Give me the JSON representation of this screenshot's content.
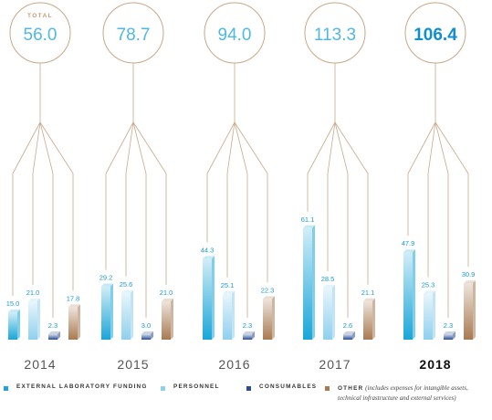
{
  "chart_data": {
    "type": "bar",
    "categories": [
      "2014",
      "2015",
      "2016",
      "2017",
      "2018"
    ],
    "totals": [
      "56.0",
      "78.7",
      "94.0",
      "113.3",
      "106.4"
    ],
    "total_label": "TOTAL",
    "highlighted_category": "2018",
    "series": [
      {
        "name": "EXTERNAL LABORATORY FUNDING",
        "values": [
          15.0,
          29.2,
          44.3,
          61.1,
          47.9
        ],
        "color": "#1aa6d8"
      },
      {
        "name": "PERSONNEL",
        "values": [
          21.0,
          25.6,
          25.1,
          28.5,
          25.3
        ],
        "color": "#8fd0ee"
      },
      {
        "name": "CONSUMABLES",
        "values": [
          2.3,
          3.0,
          2.3,
          2.6,
          2.3
        ],
        "color": "#2a4e94"
      },
      {
        "name": "OTHER",
        "values": [
          17.8,
          21.0,
          22.3,
          21.1,
          30.9
        ],
        "color": "#a87a52"
      }
    ],
    "value_labels": [
      [
        "15.0",
        "21.0",
        "2.3",
        "17.8"
      ],
      [
        "29.2",
        "25.6",
        "3.0",
        "21.0"
      ],
      [
        "44.3",
        "25.1",
        "2.3",
        "22.3"
      ],
      [
        "61.1",
        "28.5",
        "2.6",
        "21.1"
      ],
      [
        "47.9",
        "25.3",
        "2.3",
        "30.9"
      ]
    ],
    "colors": {
      "connector": "#c9a88a",
      "circle": "#c9a88a",
      "total_text": "#4fb8e3",
      "total_text_highlight": "#0f8fd0",
      "year_text": "#555555",
      "year_text_highlight": "#111111",
      "total_label": "#c49a74"
    }
  },
  "legend": {
    "items": [
      {
        "label": "EXTERNAL LABORATORY FUNDING",
        "color": "#1aa6d8"
      },
      {
        "label": "PERSONNEL",
        "color": "#8fd0ee"
      },
      {
        "label": "CONSUMABLES",
        "color": "#2a4e94"
      }
    ],
    "other": {
      "label": "OTHER",
      "note": "(includes expenses for intangible assets, technical infrastructure and external services)",
      "color": "#a87a52"
    }
  }
}
